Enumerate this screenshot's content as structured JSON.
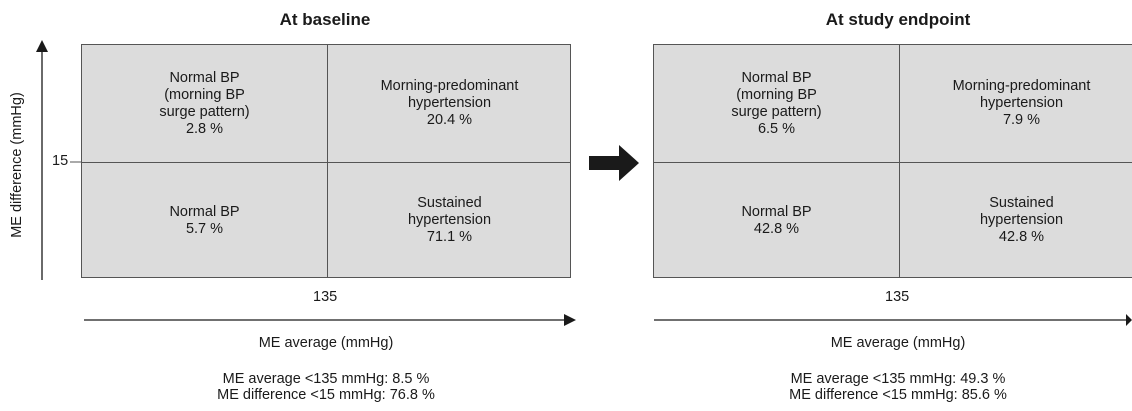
{
  "y_axis_label": "ME difference (mmHg)",
  "arrow_icon": "right-arrow-icon",
  "colors": {
    "cell_fill": "#dcdcdc",
    "line": "#555555",
    "arrow": "#1a1a1a"
  },
  "panels": [
    {
      "title": "At baseline",
      "y_threshold": "15",
      "x_threshold": "135",
      "x_axis_label": "ME average (mmHg)",
      "cells": {
        "top_left": [
          "Normal BP",
          "(morning BP",
          "surge pattern)",
          "2.8 %"
        ],
        "top_right": [
          "Morning-predominant",
          "hypertension",
          "20.4 %"
        ],
        "bottom_left": [
          "Normal BP",
          "5.7 %"
        ],
        "bottom_right": [
          "Sustained",
          "hypertension",
          "71.1 %"
        ]
      },
      "footer": [
        "ME average <135 mmHg: 8.5 %",
        "ME difference <15 mmHg: 76.8 %"
      ]
    },
    {
      "title": "At study endpoint",
      "x_threshold": "135",
      "x_axis_label": "ME average (mmHg)",
      "cells": {
        "top_left": [
          "Normal BP",
          "(morning BP",
          "surge pattern)",
          "6.5 %"
        ],
        "top_right": [
          "Morning-predominant",
          "hypertension",
          "7.9 %"
        ],
        "bottom_left": [
          "Normal BP",
          "42.8 %"
        ],
        "bottom_right": [
          "Sustained",
          "hypertension",
          "42.8 %"
        ]
      },
      "footer": [
        "ME average <135 mmHg: 49.3 %",
        "ME difference <15 mmHg: 85.6 %"
      ]
    }
  ]
}
